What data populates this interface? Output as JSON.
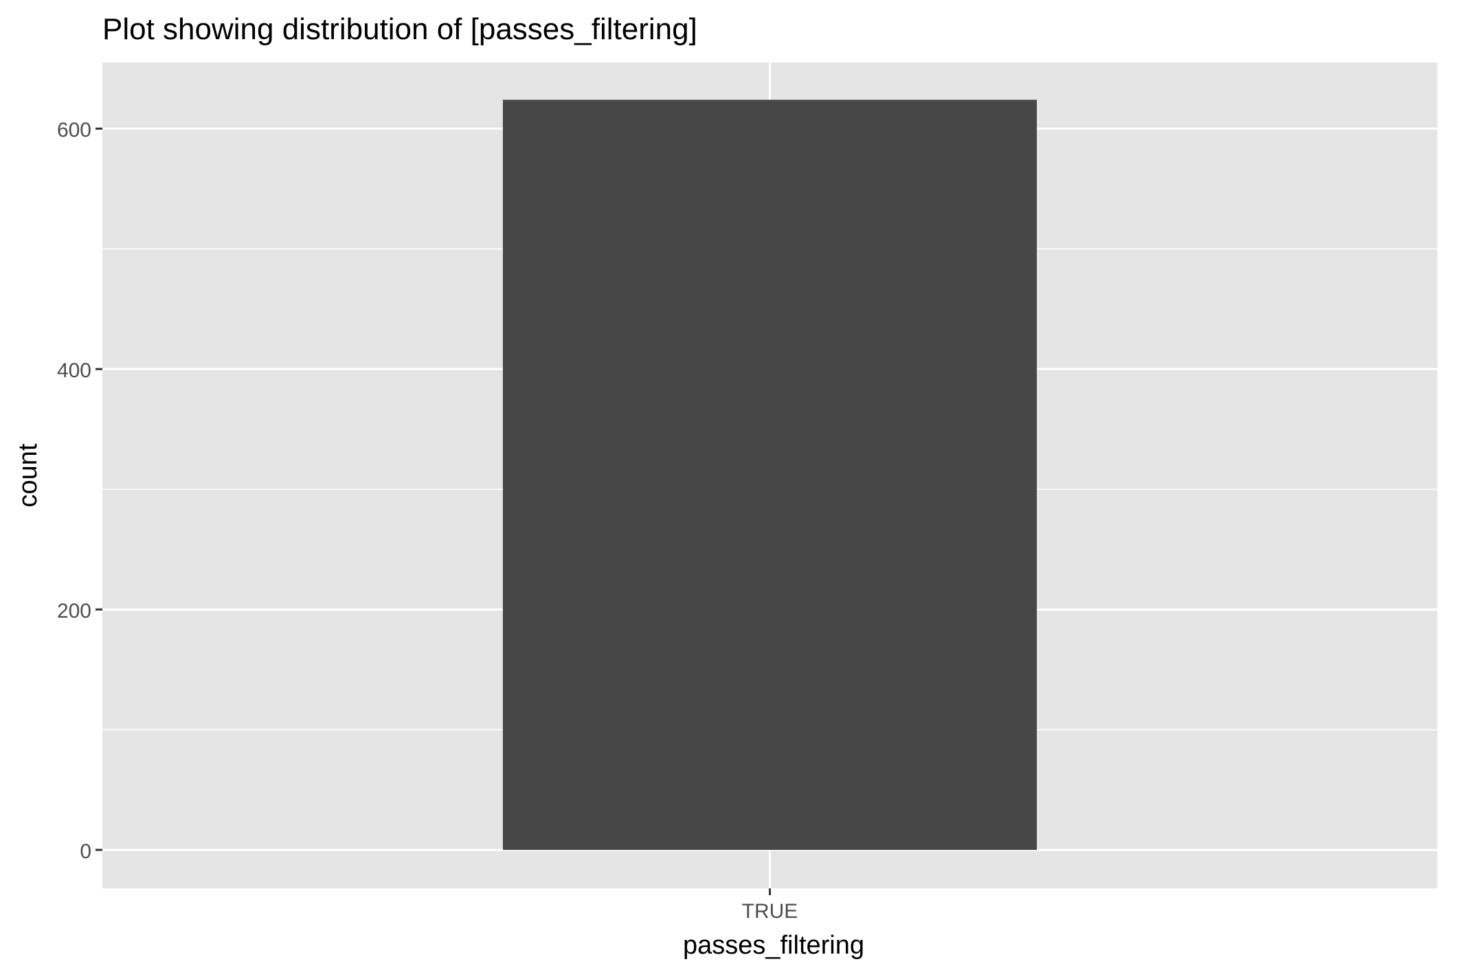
{
  "chart_data": {
    "type": "bar",
    "title": "Plot showing distribution of [passes_filtering]",
    "xlabel": "passes_filtering",
    "ylabel": "count",
    "categories": [
      "TRUE"
    ],
    "values": [
      624
    ],
    "ylim": [
      -32,
      655
    ],
    "y_ticks": [
      0,
      200,
      400,
      600
    ],
    "y_minor_ticks": [
      100,
      300,
      500
    ],
    "grid": true,
    "legend": "none",
    "colors": {
      "panel_background": "#E5E5E5",
      "gridline": "#FFFFFF",
      "bar_fill": "#474747",
      "tick_text": "#4D4D4D",
      "axis_text": "#000000"
    }
  }
}
